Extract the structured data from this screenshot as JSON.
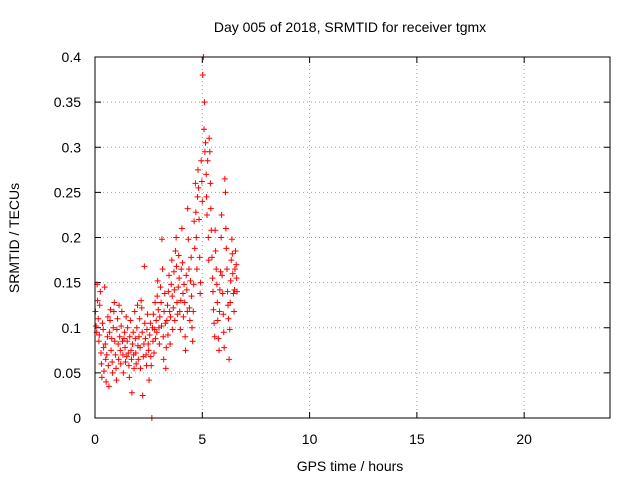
{
  "chart_data": {
    "type": "scatter",
    "title": "Day 005 of 2018, SRMTID for receiver tgmx",
    "xlabel": "GPS time / hours",
    "ylabel": "SRMTID / TECUs",
    "xlim": [
      0,
      24
    ],
    "ylim": [
      0,
      0.4
    ],
    "xticks": [
      0,
      5,
      10,
      15,
      20
    ],
    "xtick_labels": [
      "0",
      "5",
      "10",
      "15",
      "20"
    ],
    "yticks": [
      0,
      0.05,
      0.1,
      0.15,
      0.2,
      0.25,
      0.3,
      0.35,
      0.4
    ],
    "ytick_labels": [
      "0",
      "0.05",
      "0.1",
      "0.15",
      "0.2",
      "0.25",
      "0.3",
      "0.35",
      "0.4"
    ],
    "grid": true,
    "marker": "+",
    "color": "#ff0000",
    "series": [
      {
        "name": "tgmx",
        "points": [
          [
            0.02,
            0.118
          ],
          [
            0.05,
            0.102
          ],
          [
            0.08,
            0.095
          ],
          [
            0.1,
            0.148
          ],
          [
            0.12,
            0.13
          ],
          [
            0.15,
            0.11
          ],
          [
            0.18,
            0.085
          ],
          [
            0.2,
            0.092
          ],
          [
            0.22,
            0.125
          ],
          [
            0.25,
            0.14
          ],
          [
            0.28,
            0.072
          ],
          [
            0.3,
            0.06
          ],
          [
            0.32,
            0.045
          ],
          [
            0.35,
            0.105
          ],
          [
            0.38,
            0.098
          ],
          [
            0.4,
            0.078
          ],
          [
            0.42,
            0.052
          ],
          [
            0.45,
            0.145
          ],
          [
            0.48,
            0.082
          ],
          [
            0.5,
            0.065
          ],
          [
            0.52,
            0.04
          ],
          [
            0.55,
            0.07
          ],
          [
            0.58,
            0.09
          ],
          [
            0.6,
            0.112
          ],
          [
            0.62,
            0.058
          ],
          [
            0.65,
            0.035
          ],
          [
            0.68,
            0.095
          ],
          [
            0.7,
            0.108
          ],
          [
            0.72,
            0.12
          ],
          [
            0.75,
            0.075
          ],
          [
            0.78,
            0.088
          ],
          [
            0.8,
            0.062
          ],
          [
            0.82,
            0.05
          ],
          [
            0.85,
            0.1
          ],
          [
            0.88,
            0.118
          ],
          [
            0.9,
            0.128
          ],
          [
            0.92,
            0.085
          ],
          [
            0.95,
            0.07
          ],
          [
            0.98,
            0.055
          ],
          [
            1.0,
            0.042
          ],
          [
            1.02,
            0.098
          ],
          [
            1.05,
            0.11
          ],
          [
            1.08,
            0.082
          ],
          [
            1.1,
            0.065
          ],
          [
            1.12,
            0.125
          ],
          [
            1.15,
            0.09
          ],
          [
            1.18,
            0.075
          ],
          [
            1.2,
            0.06
          ],
          [
            1.22,
            0.102
          ],
          [
            1.25,
            0.118
          ],
          [
            1.28,
            0.085
          ],
          [
            1.3,
            0.07
          ],
          [
            1.32,
            0.05
          ],
          [
            1.35,
            0.088
          ],
          [
            1.38,
            0.095
          ],
          [
            1.4,
            0.078
          ],
          [
            1.42,
            0.062
          ],
          [
            1.45,
            0.112
          ],
          [
            1.48,
            0.068
          ],
          [
            1.5,
            0.085
          ],
          [
            1.52,
            0.1
          ],
          [
            1.55,
            0.072
          ],
          [
            1.58,
            0.058
          ],
          [
            1.6,
            0.045
          ],
          [
            1.62,
            0.09
          ],
          [
            1.65,
            0.108
          ],
          [
            1.68,
            0.075
          ],
          [
            1.7,
            0.065
          ],
          [
            1.72,
            0.028
          ],
          [
            1.75,
            0.082
          ],
          [
            1.78,
            0.095
          ],
          [
            1.8,
            0.07
          ],
          [
            1.82,
            0.055
          ],
          [
            1.85,
            0.118
          ],
          [
            1.88,
            0.088
          ],
          [
            1.9,
            0.072
          ],
          [
            1.92,
            0.06
          ],
          [
            1.95,
            0.1
          ],
          [
            1.98,
            0.125
          ],
          [
            2.0,
            0.08
          ],
          [
            2.02,
            0.065
          ],
          [
            2.05,
            0.09
          ],
          [
            2.08,
            0.11
          ],
          [
            2.1,
            0.078
          ],
          [
            2.12,
            0.055
          ],
          [
            2.15,
            0.13
          ],
          [
            2.18,
            0.122
          ],
          [
            2.2,
            0.095
          ],
          [
            2.22,
            0.025
          ],
          [
            2.25,
            0.068
          ],
          [
            2.28,
            0.082
          ],
          [
            2.3,
            0.168
          ],
          [
            2.32,
            0.105
          ],
          [
            2.35,
            0.088
          ],
          [
            2.38,
            0.07
          ],
          [
            2.4,
            0.058
          ],
          [
            2.42,
            0.098
          ],
          [
            2.45,
            0.115
          ],
          [
            2.48,
            0.082
          ],
          [
            2.5,
            0.075
          ],
          [
            2.52,
            0.042
          ],
          [
            2.55,
            0.092
          ],
          [
            2.58,
            0.105
          ],
          [
            2.6,
            0.068
          ],
          [
            2.62,
            0.058
          ],
          [
            2.65,
            0.0
          ],
          [
            2.68,
            0.1
          ],
          [
            2.7,
            0.085
          ],
          [
            2.72,
            0.115
          ],
          [
            2.75,
            0.072
          ],
          [
            2.78,
            0.098
          ],
          [
            2.8,
            0.128
          ],
          [
            2.82,
            0.088
          ],
          [
            2.85,
            0.108
          ],
          [
            2.88,
            0.095
          ],
          [
            2.9,
            0.135
          ],
          [
            2.92,
            0.152
          ],
          [
            2.95,
            0.12
          ],
          [
            2.98,
            0.1
          ],
          [
            3.0,
            0.082
          ],
          [
            3.02,
            0.112
          ],
          [
            3.05,
            0.145
          ],
          [
            3.08,
            0.128
          ],
          [
            3.1,
            0.102
          ],
          [
            3.12,
            0.198
          ],
          [
            3.15,
            0.165
          ],
          [
            3.18,
            0.09
          ],
          [
            3.2,
            0.065
          ],
          [
            3.22,
            0.118
          ],
          [
            3.25,
            0.138
          ],
          [
            3.28,
            0.105
          ],
          [
            3.3,
            0.055
          ],
          [
            3.32,
            0.078
          ],
          [
            3.35,
            0.108
          ],
          [
            3.38,
            0.125
          ],
          [
            3.4,
            0.092
          ],
          [
            3.42,
            0.14
          ],
          [
            3.45,
            0.158
          ],
          [
            3.48,
            0.118
          ],
          [
            3.5,
            0.082
          ],
          [
            3.52,
            0.112
          ],
          [
            3.55,
            0.148
          ],
          [
            3.58,
            0.175
          ],
          [
            3.6,
            0.135
          ],
          [
            3.62,
            0.098
          ],
          [
            3.65,
            0.122
          ],
          [
            3.68,
            0.162
          ],
          [
            3.7,
            0.142
          ],
          [
            3.72,
            0.108
          ],
          [
            3.75,
            0.185
          ],
          [
            3.78,
            0.2
          ],
          [
            3.8,
            0.168
          ],
          [
            3.82,
            0.128
          ],
          [
            3.85,
            0.115
          ],
          [
            3.88,
            0.145
          ],
          [
            3.9,
            0.18
          ],
          [
            3.92,
            0.155
          ],
          [
            3.95,
            0.118
          ],
          [
            3.98,
            0.098
          ],
          [
            4.0,
            0.13
          ],
          [
            4.02,
            0.165
          ],
          [
            4.05,
            0.21
          ],
          [
            4.08,
            0.172
          ],
          [
            4.1,
            0.138
          ],
          [
            4.12,
            0.112
          ],
          [
            4.15,
            0.148
          ],
          [
            4.18,
            0.128
          ],
          [
            4.2,
            0.09
          ],
          [
            4.22,
            0.075
          ],
          [
            4.25,
            0.158
          ],
          [
            4.28,
            0.142
          ],
          [
            4.3,
            0.118
          ],
          [
            4.32,
            0.232
          ],
          [
            4.35,
            0.198
          ],
          [
            4.38,
            0.165
          ],
          [
            4.4,
            0.122
          ],
          [
            4.42,
            0.108
          ],
          [
            4.45,
            0.152
          ],
          [
            4.48,
            0.178
          ],
          [
            4.5,
            0.135
          ],
          [
            4.52,
            0.1
          ],
          [
            4.55,
            0.085
          ],
          [
            4.58,
            0.118
          ],
          [
            4.6,
            0.148
          ],
          [
            4.62,
            0.218
          ],
          [
            4.65,
            0.188
          ],
          [
            4.68,
            0.26
          ],
          [
            4.7,
            0.228
          ],
          [
            4.72,
            0.2
          ],
          [
            4.75,
            0.165
          ],
          [
            4.78,
            0.245
          ],
          [
            4.8,
            0.275
          ],
          [
            4.82,
            0.255
          ],
          [
            4.85,
            0.22
          ],
          [
            4.88,
            0.178
          ],
          [
            4.9,
            0.138
          ],
          [
            4.92,
            0.15
          ],
          [
            4.95,
            0.285
          ],
          [
            4.98,
            0.262
          ],
          [
            5.0,
            0.24
          ],
          [
            5.02,
            0.38
          ],
          [
            5.05,
            0.4
          ],
          [
            5.08,
            0.32
          ],
          [
            5.1,
            0.35
          ],
          [
            5.12,
            0.295
          ],
          [
            5.15,
            0.305
          ],
          [
            5.18,
            0.27
          ],
          [
            5.2,
            0.245
          ],
          [
            5.22,
            0.225
          ],
          [
            5.25,
            0.285
          ],
          [
            5.28,
            0.2
          ],
          [
            5.3,
            0.175
          ],
          [
            5.32,
            0.31
          ],
          [
            5.35,
            0.295
          ],
          [
            5.38,
            0.26
          ],
          [
            5.4,
            0.232
          ],
          [
            5.42,
            0.208
          ],
          [
            5.45,
            0.178
          ],
          [
            5.48,
            0.155
          ],
          [
            5.5,
            0.14
          ],
          [
            5.52,
            0.12
          ],
          [
            5.55,
            0.105
          ],
          [
            5.58,
            0.09
          ],
          [
            5.6,
            0.208
          ],
          [
            5.62,
            0.185
          ],
          [
            5.65,
            0.165
          ],
          [
            5.68,
            0.148
          ],
          [
            5.7,
            0.128
          ],
          [
            5.72,
            0.108
          ],
          [
            5.75,
            0.088
          ],
          [
            5.78,
            0.075
          ],
          [
            5.8,
            0.118
          ],
          [
            5.82,
            0.142
          ],
          [
            5.85,
            0.162
          ],
          [
            5.88,
            0.2
          ],
          [
            5.9,
            0.225
          ],
          [
            5.92,
            0.158
          ],
          [
            5.95,
            0.138
          ],
          [
            5.98,
            0.115
          ],
          [
            6.0,
            0.095
          ],
          [
            6.02,
            0.078
          ],
          [
            6.05,
            0.265
          ],
          [
            6.08,
            0.25
          ],
          [
            6.1,
            0.21
          ],
          [
            6.12,
            0.188
          ],
          [
            6.15,
            0.165
          ],
          [
            6.18,
            0.14
          ],
          [
            6.2,
            0.125
          ],
          [
            6.22,
            0.11
          ],
          [
            6.25,
            0.065
          ],
          [
            6.28,
            0.098
          ],
          [
            6.3,
            0.128
          ],
          [
            6.32,
            0.152
          ],
          [
            6.35,
            0.175
          ],
          [
            6.38,
            0.198
          ],
          [
            6.4,
            0.182
          ],
          [
            6.42,
            0.16
          ],
          [
            6.45,
            0.138
          ],
          [
            6.48,
            0.118
          ],
          [
            6.5,
            0.142
          ],
          [
            6.52,
            0.165
          ],
          [
            6.55,
            0.185
          ],
          [
            6.58,
            0.17
          ],
          [
            6.6,
            0.155
          ],
          [
            6.62,
            0.14
          ]
        ]
      }
    ]
  }
}
